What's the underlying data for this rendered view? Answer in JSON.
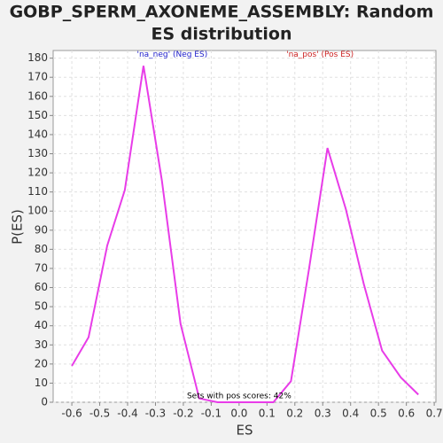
{
  "chart_data": {
    "type": "line",
    "title": [
      "GOBP_SPERM_AXONEME_ASSEMBLY: Random",
      "ES distribution"
    ],
    "x_label": "ES",
    "y_label": "P(ES)",
    "annotations": [
      {
        "text": "'na_neg' (Neg ES)",
        "color": "#2222cc",
        "x": -0.24,
        "y": 180
      },
      {
        "text": "'na_pos' (Pos ES)",
        "color": "#cc2222",
        "x": 0.29,
        "y": 180
      },
      {
        "text": "Sets with pos scores: 42%",
        "color": "#000000",
        "x": 0.0,
        "y": 1.5
      }
    ],
    "x": [
      -0.6,
      -0.54,
      -0.473,
      -0.41,
      -0.343,
      -0.277,
      -0.21,
      -0.143,
      -0.077,
      -0.01,
      0.057,
      0.123,
      0.186,
      0.25,
      0.317,
      0.383,
      0.447,
      0.513,
      0.58,
      0.643
    ],
    "series": [
      {
        "name": "P(ES)",
        "color": "#e83ce8",
        "values": [
          19,
          34,
          82,
          111,
          176,
          116,
          41,
          2,
          0,
          0,
          0,
          0,
          11,
          69,
          133,
          101,
          62,
          27,
          13,
          4
        ]
      }
    ],
    "xlim": [
      -0.667,
      0.706
    ],
    "ylim": [
      0,
      184
    ],
    "xticks": [
      -0.6,
      -0.5,
      -0.4,
      -0.3,
      -0.2,
      -0.1,
      {
        "value": 0,
        "label": "0.0"
      },
      0.1,
      0.2,
      0.3,
      0.4,
      0.5,
      0.6,
      0.7
    ],
    "yticks": [
      0,
      10,
      20,
      30,
      40,
      50,
      60,
      70,
      80,
      90,
      100,
      110,
      120,
      130,
      140,
      150,
      160,
      170,
      180
    ],
    "grid": true
  }
}
